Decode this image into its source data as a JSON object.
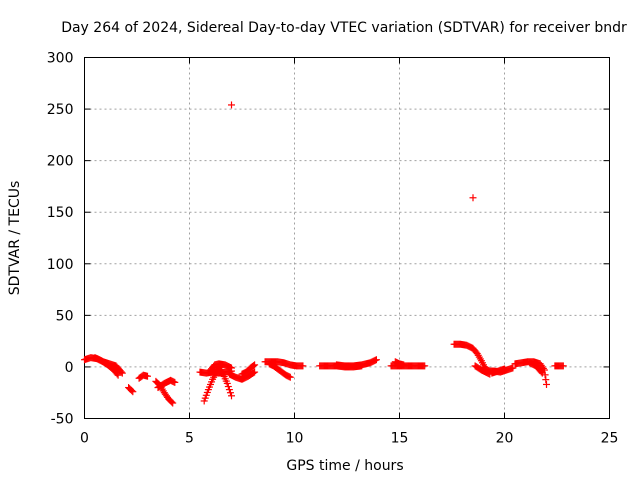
{
  "chart_data": {
    "type": "scatter",
    "title": "Day 264 of 2024, Sidereal Day-to-day VTEC variation (SDTVAR) for receiver bndr",
    "xlabel": "GPS time / hours",
    "ylabel": "SDTVAR / TECUs",
    "xlim": [
      0,
      25
    ],
    "ylim": [
      -50,
      300
    ],
    "xticks": [
      0,
      5,
      10,
      15,
      20,
      25
    ],
    "yticks": [
      -50,
      0,
      50,
      100,
      150,
      200,
      250,
      300
    ],
    "grid": true,
    "marker": "+",
    "color": "#ff0000",
    "outliers": [
      [
        7.0,
        254
      ],
      [
        18.5,
        164
      ]
    ],
    "segments": [
      {
        "x": [
          0.0,
          0.3,
          0.6,
          0.9,
          1.2,
          1.5,
          1.8
        ],
        "y": [
          7,
          9,
          8,
          5,
          3,
          1,
          -6
        ]
      },
      {
        "x": [
          0.5,
          0.8,
          1.1,
          1.4,
          1.6
        ],
        "y": [
          9,
          6,
          2,
          -3,
          -8
        ]
      },
      {
        "x": [
          2.1,
          2.3
        ],
        "y": [
          -20,
          -24
        ]
      },
      {
        "x": [
          2.6,
          2.8,
          3.0
        ],
        "y": [
          -11,
          -8,
          -9
        ]
      },
      {
        "x": [
          3.4,
          3.6,
          3.8,
          4.0,
          4.2
        ],
        "y": [
          -14,
          -18,
          -25,
          -31,
          -35
        ]
      },
      {
        "x": [
          3.5,
          3.8,
          4.1,
          4.3
        ],
        "y": [
          -20,
          -16,
          -13,
          -15
        ]
      },
      {
        "x": [
          5.5,
          5.8,
          6.1,
          6.4,
          6.7,
          7.0
        ],
        "y": [
          -5,
          -6,
          -5,
          -6,
          -5,
          -4
        ]
      },
      {
        "x": [
          5.7,
          5.9,
          6.1,
          6.3,
          6.5
        ],
        "y": [
          -33,
          -22,
          -12,
          -4,
          2
        ]
      },
      {
        "x": [
          6.2,
          6.4,
          6.6,
          6.8,
          7.0
        ],
        "y": [
          -4,
          -2,
          -7,
          -16,
          -28
        ]
      },
      {
        "x": [
          6.0,
          6.2,
          6.4,
          6.7,
          7.0
        ],
        "y": [
          -3,
          2,
          3,
          2,
          -1
        ]
      },
      {
        "x": [
          6.9,
          7.2,
          7.5,
          7.8,
          8.1
        ],
        "y": [
          -7,
          -10,
          -12,
          -9,
          -5
        ]
      },
      {
        "x": [
          7.5,
          7.7,
          7.9,
          8.1
        ],
        "y": [
          -7,
          -5,
          -1,
          2
        ]
      },
      {
        "x": [
          8.6,
          8.9,
          9.2,
          9.5,
          9.8,
          10.1,
          10.4
        ],
        "y": [
          5,
          5,
          5,
          4,
          2,
          1,
          1
        ]
      },
      {
        "x": [
          8.8,
          9.0,
          9.2,
          9.4,
          9.6,
          9.8
        ],
        "y": [
          3,
          1,
          -2,
          -5,
          -8,
          -10
        ]
      },
      {
        "x": [
          11.2,
          11.6,
          12.0,
          12.4,
          12.8,
          13.2
        ],
        "y": [
          1,
          1,
          1,
          0,
          0,
          1
        ]
      },
      {
        "x": [
          12.0,
          12.4,
          12.8,
          13.2,
          13.6,
          13.9
        ],
        "y": [
          2,
          1,
          1,
          2,
          4,
          7
        ]
      },
      {
        "x": [
          14.6,
          15.0,
          15.4,
          15.8,
          16.2
        ],
        "y": [
          1,
          1,
          1,
          1,
          1
        ]
      },
      {
        "x": [
          14.8,
          15.0,
          15.2
        ],
        "y": [
          5,
          3,
          2
        ]
      },
      {
        "x": [
          17.6,
          17.9,
          18.2,
          18.5,
          18.7,
          18.9,
          19.1,
          19.3,
          19.5,
          19.8,
          20.1,
          20.4
        ],
        "y": [
          22,
          22,
          21,
          18,
          13,
          6,
          -2,
          -4,
          -4,
          -5,
          -3,
          -1
        ]
      },
      {
        "x": [
          18.6,
          18.9,
          19.1,
          19.3
        ],
        "y": [
          1,
          -3,
          -5,
          -7
        ]
      },
      {
        "x": [
          19.4,
          19.7,
          20.0
        ],
        "y": [
          -6,
          -4,
          -2
        ]
      },
      {
        "x": [
          20.5,
          20.8,
          21.1,
          21.4,
          21.7,
          21.9,
          22.0
        ],
        "y": [
          3,
          4,
          5,
          5,
          3,
          -3,
          -17
        ]
      },
      {
        "x": [
          21.2,
          21.5,
          21.8
        ],
        "y": [
          4,
          1,
          -6
        ]
      },
      {
        "x": [
          22.4,
          22.6,
          22.8
        ],
        "y": [
          1,
          1,
          1
        ]
      }
    ]
  }
}
